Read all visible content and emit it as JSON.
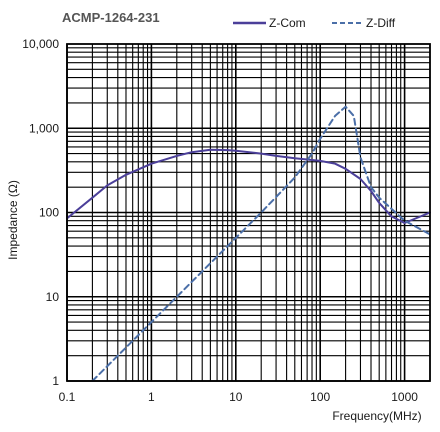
{
  "chart_data": {
    "type": "line",
    "title": "ACMP-1264-231",
    "xlabel": "Frequency(MHz)",
    "ylabel": "Impedance  (Ω)",
    "xscale": "log",
    "yscale": "log",
    "xlim": [
      0.1,
      2000
    ],
    "ylim": [
      1,
      10000
    ],
    "grid": true,
    "legend_position": "top-right",
    "x_ticks": [
      "0.1",
      "1",
      "10",
      "100",
      "1000"
    ],
    "y_ticks": [
      "1",
      "10",
      "100",
      "1,000",
      "10,000"
    ],
    "series": [
      {
        "name": "Z-Com",
        "style": "solid",
        "color": "#4b3f99",
        "points": [
          [
            0.1,
            85
          ],
          [
            0.2,
            150
          ],
          [
            0.3,
            210
          ],
          [
            0.5,
            280
          ],
          [
            1,
            380
          ],
          [
            2,
            470
          ],
          [
            3,
            520
          ],
          [
            5,
            555
          ],
          [
            8,
            550
          ],
          [
            10,
            540
          ],
          [
            20,
            500
          ],
          [
            30,
            470
          ],
          [
            50,
            440
          ],
          [
            80,
            420
          ],
          [
            100,
            410
          ],
          [
            150,
            380
          ],
          [
            200,
            330
          ],
          [
            300,
            250
          ],
          [
            400,
            180
          ],
          [
            500,
            130
          ],
          [
            700,
            90
          ],
          [
            1000,
            75
          ],
          [
            2000,
            100
          ]
        ]
      },
      {
        "name": "Z-Diff",
        "style": "dashed",
        "color": "#4b6fa8",
        "points": [
          [
            0.2,
            1
          ],
          [
            0.5,
            2.5
          ],
          [
            1,
            5
          ],
          [
            2,
            10
          ],
          [
            5,
            25
          ],
          [
            10,
            50
          ],
          [
            20,
            100
          ],
          [
            50,
            260
          ],
          [
            80,
            500
          ],
          [
            100,
            750
          ],
          [
            150,
            1400
          ],
          [
            200,
            1800
          ],
          [
            250,
            1400
          ],
          [
            300,
            450
          ],
          [
            400,
            200
          ],
          [
            500,
            150
          ],
          [
            1000,
            80
          ],
          [
            2000,
            55
          ]
        ]
      }
    ]
  }
}
